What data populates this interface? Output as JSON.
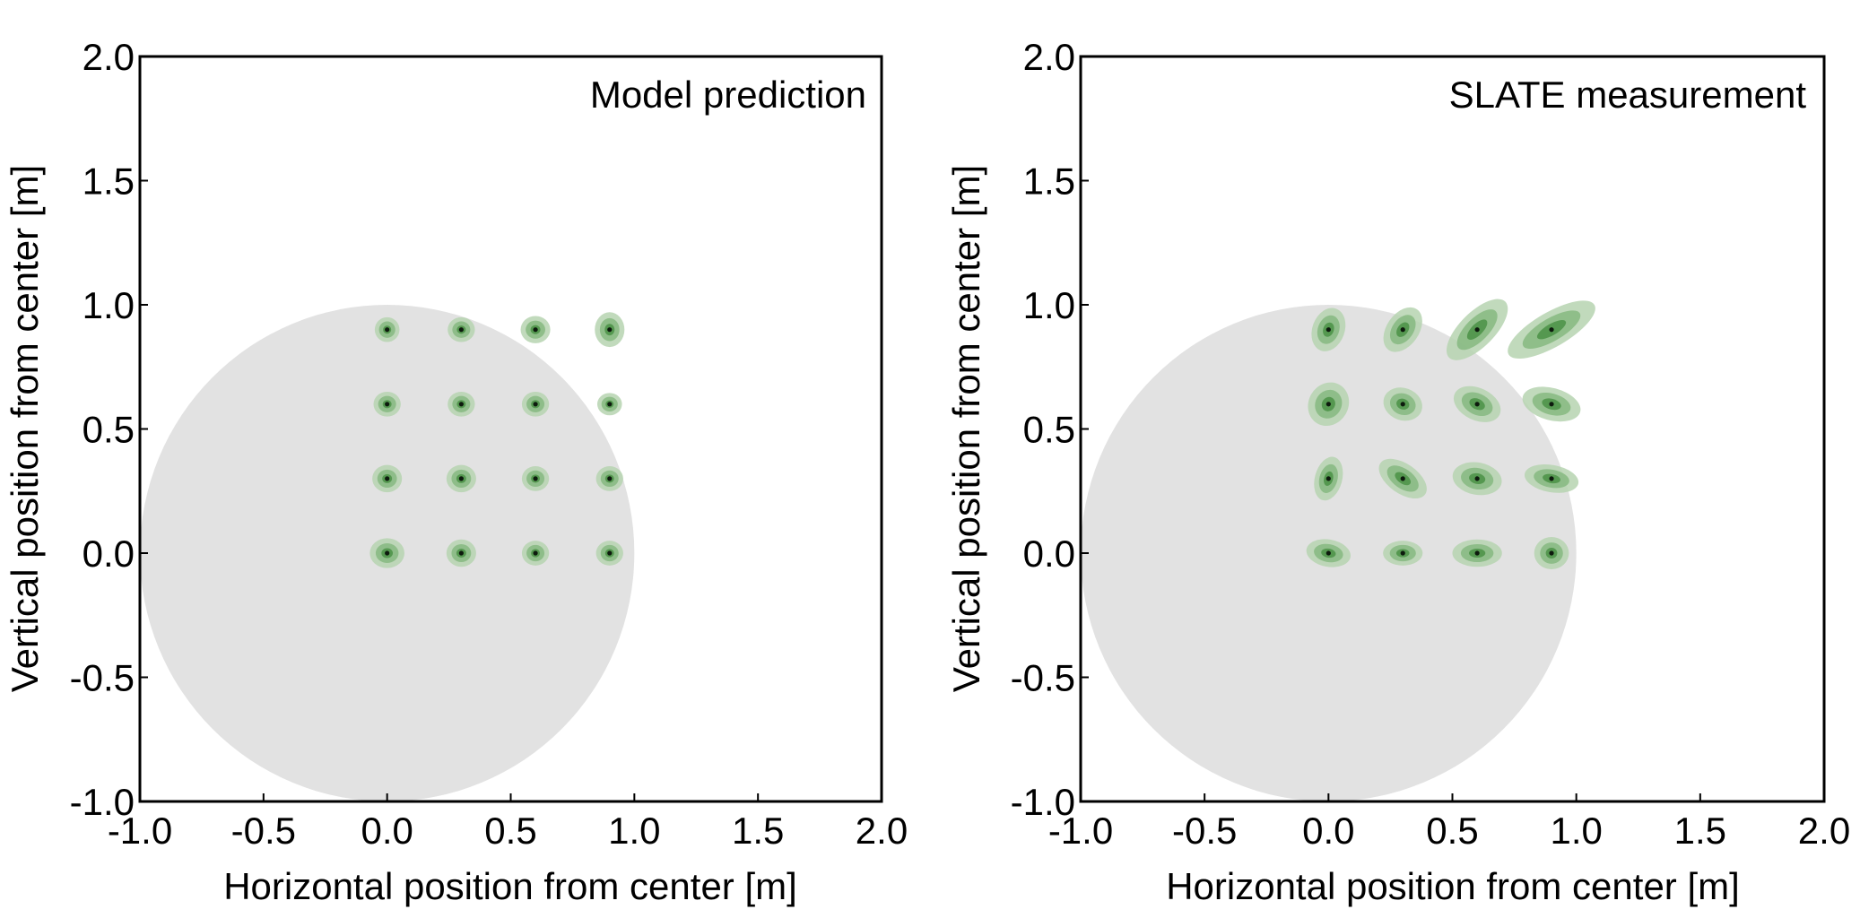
{
  "colors": {
    "background": "#ffffff",
    "circle_fill": "#e2e2e2",
    "ellipse_outer": "#b6d3b0",
    "ellipse_mid": "#86b880",
    "ellipse_inner": "#4f934a",
    "dot": "#0d1a0d",
    "axis": "#000000"
  },
  "chart_data": [
    {
      "type": "scatter",
      "title": "Model prediction",
      "xlabel": "Horizontal position from center [m]",
      "ylabel": "Vertical position from center [m]",
      "xlim": [
        -1.0,
        2.0
      ],
      "ylim": [
        -1.0,
        2.0
      ],
      "xticks": [
        "-1.0",
        "-0.5",
        "0.0",
        "0.5",
        "1.0",
        "1.5",
        "2.0"
      ],
      "yticks": [
        "-1.0",
        "-0.5",
        "0.0",
        "0.5",
        "1.0",
        "1.5",
        "2.0"
      ],
      "grid": false,
      "region_circle": {
        "center": [
          0.0,
          0.0
        ],
        "radius": 1.0
      },
      "points": [
        {
          "x": 0.0,
          "y": 0.0,
          "sx": 0.07,
          "sy": 0.06,
          "angle": 0
        },
        {
          "x": 0.3,
          "y": 0.0,
          "sx": 0.06,
          "sy": 0.055,
          "angle": 0
        },
        {
          "x": 0.6,
          "y": 0.0,
          "sx": 0.055,
          "sy": 0.05,
          "angle": 0
        },
        {
          "x": 0.9,
          "y": 0.0,
          "sx": 0.055,
          "sy": 0.05,
          "angle": 0
        },
        {
          "x": 0.0,
          "y": 0.3,
          "sx": 0.06,
          "sy": 0.055,
          "angle": 0
        },
        {
          "x": 0.3,
          "y": 0.3,
          "sx": 0.06,
          "sy": 0.055,
          "angle": 0
        },
        {
          "x": 0.6,
          "y": 0.3,
          "sx": 0.055,
          "sy": 0.05,
          "angle": 0
        },
        {
          "x": 0.9,
          "y": 0.3,
          "sx": 0.055,
          "sy": 0.05,
          "angle": 0
        },
        {
          "x": 0.0,
          "y": 0.6,
          "sx": 0.055,
          "sy": 0.05,
          "angle": 0
        },
        {
          "x": 0.3,
          "y": 0.6,
          "sx": 0.055,
          "sy": 0.05,
          "angle": 0
        },
        {
          "x": 0.6,
          "y": 0.6,
          "sx": 0.055,
          "sy": 0.05,
          "angle": 0
        },
        {
          "x": 0.9,
          "y": 0.6,
          "sx": 0.05,
          "sy": 0.045,
          "angle": 0
        },
        {
          "x": 0.0,
          "y": 0.9,
          "sx": 0.05,
          "sy": 0.05,
          "angle": 0
        },
        {
          "x": 0.3,
          "y": 0.9,
          "sx": 0.055,
          "sy": 0.05,
          "angle": 0
        },
        {
          "x": 0.6,
          "y": 0.9,
          "sx": 0.06,
          "sy": 0.055,
          "angle": 0
        },
        {
          "x": 0.9,
          "y": 0.9,
          "sx": 0.06,
          "sy": 0.07,
          "angle": 0
        }
      ]
    },
    {
      "type": "scatter",
      "title": "SLATE measurement",
      "xlabel": "Horizontal position from center [m]",
      "ylabel": "Vertical position from center [m]",
      "xlim": [
        -1.0,
        2.0
      ],
      "ylim": [
        -1.0,
        2.0
      ],
      "xticks": [
        "-1.0",
        "-0.5",
        "0.0",
        "0.5",
        "1.0",
        "1.5",
        "2.0"
      ],
      "yticks": [
        "-1.0",
        "-0.5",
        "0.0",
        "0.5",
        "1.0",
        "1.5",
        "2.0"
      ],
      "grid": false,
      "region_circle": {
        "center": [
          0.0,
          0.0
        ],
        "radius": 1.0
      },
      "points": [
        {
          "x": 0.0,
          "y": 0.0,
          "sx": 0.09,
          "sy": 0.055,
          "angle": -10
        },
        {
          "x": 0.3,
          "y": 0.0,
          "sx": 0.08,
          "sy": 0.05,
          "angle": 0
        },
        {
          "x": 0.6,
          "y": 0.0,
          "sx": 0.1,
          "sy": 0.055,
          "angle": 0
        },
        {
          "x": 0.9,
          "y": 0.0,
          "sx": 0.07,
          "sy": 0.065,
          "angle": 0
        },
        {
          "x": 0.0,
          "y": 0.3,
          "sx": 0.09,
          "sy": 0.055,
          "angle": 75
        },
        {
          "x": 0.3,
          "y": 0.3,
          "sx": 0.11,
          "sy": 0.06,
          "angle": -35
        },
        {
          "x": 0.6,
          "y": 0.3,
          "sx": 0.1,
          "sy": 0.065,
          "angle": -10
        },
        {
          "x": 0.9,
          "y": 0.3,
          "sx": 0.11,
          "sy": 0.055,
          "angle": -10
        },
        {
          "x": 0.0,
          "y": 0.6,
          "sx": 0.09,
          "sy": 0.08,
          "angle": 60
        },
        {
          "x": 0.3,
          "y": 0.6,
          "sx": 0.08,
          "sy": 0.065,
          "angle": -20
        },
        {
          "x": 0.6,
          "y": 0.6,
          "sx": 0.1,
          "sy": 0.065,
          "angle": -25
        },
        {
          "x": 0.9,
          "y": 0.6,
          "sx": 0.12,
          "sy": 0.065,
          "angle": -15
        },
        {
          "x": 0.0,
          "y": 0.9,
          "sx": 0.09,
          "sy": 0.065,
          "angle": 70
        },
        {
          "x": 0.3,
          "y": 0.9,
          "sx": 0.1,
          "sy": 0.065,
          "angle": 55
        },
        {
          "x": 0.6,
          "y": 0.9,
          "sx": 0.16,
          "sy": 0.07,
          "angle": 45
        },
        {
          "x": 0.9,
          "y": 0.9,
          "sx": 0.2,
          "sy": 0.07,
          "angle": 30
        }
      ]
    }
  ]
}
